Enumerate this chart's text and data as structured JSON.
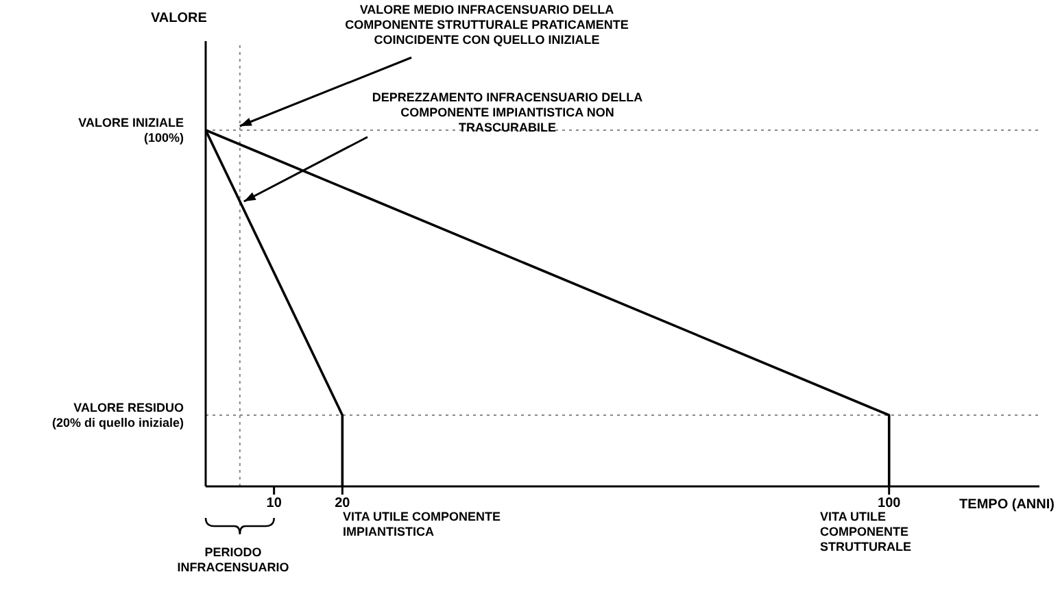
{
  "chart_data": {
    "type": "line",
    "ylabel": "VALORE",
    "xlabel": "TEMPO (ANNI)",
    "series": [
      {
        "color": "#000000",
        "x": [
          0,
          100,
          100
        ],
        "values": [
          100,
          20,
          0
        ]
      },
      {
        "color": "#000000",
        "x": [
          0,
          20,
          20
        ],
        "values": [
          100,
          20,
          0
        ]
      }
    ],
    "xlim": [
      0,
      122
    ],
    "xticks": [
      10,
      20,
      100
    ],
    "ylim": [
      0,
      125
    ],
    "yticks": [
      {
        "value": 100,
        "label": "VALORE INIZIALE\n(100%)"
      },
      {
        "value": 20,
        "label": "VALORE RESIDUO\n(20% di quello iniziale)"
      }
    ],
    "ref_lines": [
      {
        "axis": "y",
        "value": 100,
        "color": "#888888",
        "line_style": "dotted"
      },
      {
        "axis": "y",
        "value": 20,
        "color": "#888888",
        "line_style": "dotted"
      },
      {
        "axis": "x",
        "value": 5,
        "color": "#888888",
        "line_style": "dotted"
      }
    ],
    "annotations": [
      {
        "text": "VALORE MEDIO INFRACENSUARIO DELLA COMPONENTE STRUTTURALE PRATICAMENTE COINCIDENTE CON QUELLO INIZIALE",
        "x": 5,
        "y": 100
      },
      {
        "text": "DEPREZZAMENTO INFRACENSUARIO DELLA COMPONENTE IMPIANTISTICA NON TRASCURABILE",
        "x": 5,
        "y": 80
      },
      "VITA UTILE COMPONENTE IMPIANTISTICA",
      "VITA UTILE COMPONENTE STRUTTURALE",
      "PERIODO INFRACENSUARIO"
    ],
    "grid": false,
    "legend": false,
    "marker": "none",
    "line_style": "solid"
  }
}
